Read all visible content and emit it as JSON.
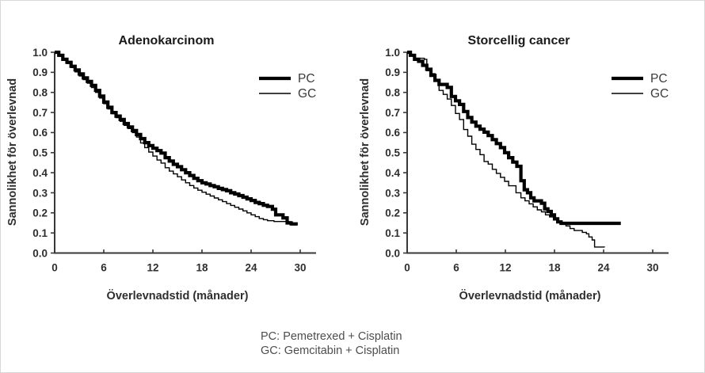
{
  "figure": {
    "footnote_lines": [
      "PC: Pemetrexed + Cisplatin",
      "GC: Gemcitabin + Cisplatin"
    ]
  },
  "chart_data": [
    {
      "type": "line",
      "subtype": "kaplan-meier-step",
      "title": "Adenokarcinom",
      "xlabel": "Överlevnadstid (månader)",
      "ylabel": "Sannolikhet för överlevnad",
      "xlim": [
        0,
        32
      ],
      "ylim": [
        0.0,
        1.0
      ],
      "xticks": [
        0,
        6,
        12,
        18,
        24,
        30
      ],
      "yticks": [
        "0.0",
        "0.1",
        "0.2",
        "0.3",
        "0.4",
        "0.5",
        "0.6",
        "0.7",
        "0.8",
        "0.9",
        "1.0"
      ],
      "grid": false,
      "legend_position": "upper-right",
      "series": [
        {
          "name": "PC",
          "style": "thick",
          "color": "#000000",
          "stroke_width": 4.2,
          "points": [
            [
              0,
              1.0
            ],
            [
              0.5,
              0.985
            ],
            [
              1,
              0.965
            ],
            [
              1.5,
              0.95
            ],
            [
              2,
              0.93
            ],
            [
              2.5,
              0.912
            ],
            [
              3,
              0.892
            ],
            [
              3.5,
              0.872
            ],
            [
              4,
              0.855
            ],
            [
              4.5,
              0.835
            ],
            [
              5,
              0.81
            ],
            [
              5.5,
              0.782
            ],
            [
              6,
              0.752
            ],
            [
              6.5,
              0.726
            ],
            [
              7,
              0.7
            ],
            [
              7.5,
              0.682
            ],
            [
              8,
              0.665
            ],
            [
              8.5,
              0.645
            ],
            [
              9,
              0.628
            ],
            [
              9.5,
              0.61
            ],
            [
              10,
              0.59
            ],
            [
              10.5,
              0.57
            ],
            [
              11,
              0.55
            ],
            [
              11.5,
              0.535
            ],
            [
              12,
              0.522
            ],
            [
              12.5,
              0.51
            ],
            [
              13,
              0.498
            ],
            [
              13.5,
              0.475
            ],
            [
              14,
              0.458
            ],
            [
              14.5,
              0.442
            ],
            [
              15,
              0.43
            ],
            [
              15.5,
              0.415
            ],
            [
              16,
              0.4
            ],
            [
              16.5,
              0.386
            ],
            [
              17,
              0.372
            ],
            [
              17.5,
              0.36
            ],
            [
              18,
              0.35
            ],
            [
              18.5,
              0.344
            ],
            [
              19,
              0.336
            ],
            [
              19.5,
              0.33
            ],
            [
              20,
              0.322
            ],
            [
              20.5,
              0.316
            ],
            [
              21,
              0.31
            ],
            [
              21.5,
              0.3
            ],
            [
              22,
              0.294
            ],
            [
              22.5,
              0.286
            ],
            [
              23,
              0.278
            ],
            [
              23.5,
              0.27
            ],
            [
              24,
              0.262
            ],
            [
              24.5,
              0.252
            ],
            [
              25,
              0.246
            ],
            [
              25.5,
              0.238
            ],
            [
              26,
              0.232
            ],
            [
              26.6,
              0.218
            ],
            [
              27,
              0.19
            ],
            [
              27.9,
              0.175
            ],
            [
              28.4,
              0.15
            ],
            [
              28.9,
              0.145
            ],
            [
              29.7,
              0.145
            ]
          ]
        },
        {
          "name": "GC",
          "style": "thin",
          "color": "#000000",
          "stroke_width": 1.4,
          "points": [
            [
              0,
              1.0
            ],
            [
              0.5,
              0.98
            ],
            [
              1,
              0.96
            ],
            [
              1.5,
              0.944
            ],
            [
              2,
              0.924
            ],
            [
              2.5,
              0.902
            ],
            [
              3,
              0.882
            ],
            [
              3.5,
              0.864
            ],
            [
              4,
              0.846
            ],
            [
              4.5,
              0.824
            ],
            [
              5,
              0.8
            ],
            [
              5.5,
              0.772
            ],
            [
              6,
              0.744
            ],
            [
              6.5,
              0.718
            ],
            [
              7,
              0.694
            ],
            [
              7.5,
              0.674
            ],
            [
              8,
              0.656
            ],
            [
              8.5,
              0.636
            ],
            [
              9,
              0.62
            ],
            [
              9.5,
              0.6
            ],
            [
              10,
              0.578
            ],
            [
              10.5,
              0.548
            ],
            [
              11,
              0.525
            ],
            [
              11.5,
              0.503
            ],
            [
              12,
              0.483
            ],
            [
              12.5,
              0.463
            ],
            [
              13,
              0.448
            ],
            [
              13.5,
              0.425
            ],
            [
              14,
              0.408
            ],
            [
              14.5,
              0.394
            ],
            [
              15,
              0.38
            ],
            [
              15.5,
              0.364
            ],
            [
              16,
              0.35
            ],
            [
              16.5,
              0.336
            ],
            [
              17,
              0.324
            ],
            [
              17.5,
              0.313
            ],
            [
              18,
              0.303
            ],
            [
              18.5,
              0.293
            ],
            [
              19,
              0.284
            ],
            [
              19.5,
              0.274
            ],
            [
              20,
              0.265
            ],
            [
              20.5,
              0.256
            ],
            [
              21,
              0.246
            ],
            [
              21.5,
              0.237
            ],
            [
              22,
              0.228
            ],
            [
              22.5,
              0.219
            ],
            [
              23,
              0.21
            ],
            [
              23.5,
              0.2
            ],
            [
              24,
              0.19
            ],
            [
              24.5,
              0.181
            ],
            [
              25,
              0.172
            ],
            [
              25.5,
              0.166
            ],
            [
              26,
              0.161
            ],
            [
              26.8,
              0.157
            ],
            [
              28.6,
              0.156
            ],
            [
              28.9,
              0.14
            ],
            [
              29.6,
              0.14
            ]
          ]
        }
      ]
    },
    {
      "type": "line",
      "subtype": "kaplan-meier-step",
      "title": "Storcellig cancer",
      "xlabel": "Överlevnadstid (månader)",
      "ylabel": "Sannolikhet för överlevnad",
      "xlim": [
        0,
        32
      ],
      "ylim": [
        0.0,
        1.0
      ],
      "xticks": [
        0,
        6,
        12,
        18,
        24,
        30
      ],
      "yticks": [
        "0.0",
        "0.1",
        "0.2",
        "0.3",
        "0.4",
        "0.5",
        "0.6",
        "0.7",
        "0.8",
        "0.9",
        "1.0"
      ],
      "grid": false,
      "legend_position": "upper-right",
      "series": [
        {
          "name": "PC",
          "style": "thick",
          "color": "#000000",
          "stroke_width": 4.2,
          "points": [
            [
              0,
              1.0
            ],
            [
              0.4,
              0.985
            ],
            [
              0.9,
              0.965
            ],
            [
              1.4,
              0.955
            ],
            [
              1.9,
              0.935
            ],
            [
              2.4,
              0.915
            ],
            [
              2.9,
              0.885
            ],
            [
              3.4,
              0.86
            ],
            [
              3.9,
              0.84
            ],
            [
              4.9,
              0.825
            ],
            [
              5.4,
              0.78
            ],
            [
              5.9,
              0.758
            ],
            [
              6.4,
              0.74
            ],
            [
              6.9,
              0.705
            ],
            [
              7.4,
              0.675
            ],
            [
              7.9,
              0.652
            ],
            [
              8.4,
              0.632
            ],
            [
              8.9,
              0.617
            ],
            [
              9.4,
              0.602
            ],
            [
              9.9,
              0.585
            ],
            [
              10.4,
              0.565
            ],
            [
              10.9,
              0.545
            ],
            [
              11.4,
              0.525
            ],
            [
              11.9,
              0.5
            ],
            [
              12.4,
              0.475
            ],
            [
              12.9,
              0.453
            ],
            [
              13.4,
              0.432
            ],
            [
              13.9,
              0.36
            ],
            [
              14.3,
              0.315
            ],
            [
              14.7,
              0.3
            ],
            [
              15.1,
              0.275
            ],
            [
              15.5,
              0.26
            ],
            [
              16.4,
              0.248
            ],
            [
              16.8,
              0.22
            ],
            [
              17.2,
              0.207
            ],
            [
              17.6,
              0.19
            ],
            [
              18.0,
              0.17
            ],
            [
              18.4,
              0.155
            ],
            [
              18.8,
              0.148
            ],
            [
              26.1,
              0.148
            ]
          ]
        },
        {
          "name": "GC",
          "style": "thin",
          "color": "#000000",
          "stroke_width": 1.4,
          "points": [
            [
              0,
              1.0
            ],
            [
              0.4,
              0.985
            ],
            [
              0.9,
              0.97
            ],
            [
              2.1,
              0.965
            ],
            [
              2.4,
              0.908
            ],
            [
              2.9,
              0.893
            ],
            [
              3.4,
              0.855
            ],
            [
              3.9,
              0.81
            ],
            [
              4.4,
              0.79
            ],
            [
              4.9,
              0.767
            ],
            [
              5.4,
              0.735
            ],
            [
              5.9,
              0.695
            ],
            [
              6.4,
              0.665
            ],
            [
              6.9,
              0.615
            ],
            [
              7.4,
              0.582
            ],
            [
              7.9,
              0.542
            ],
            [
              8.4,
              0.516
            ],
            [
              8.9,
              0.49
            ],
            [
              9.4,
              0.456
            ],
            [
              9.9,
              0.443
            ],
            [
              10.4,
              0.417
            ],
            [
              10.9,
              0.397
            ],
            [
              11.4,
              0.377
            ],
            [
              11.9,
              0.357
            ],
            [
              12.4,
              0.335
            ],
            [
              13.3,
              0.3
            ],
            [
              13.9,
              0.275
            ],
            [
              14.4,
              0.26
            ],
            [
              14.9,
              0.245
            ],
            [
              15.4,
              0.23
            ],
            [
              15.9,
              0.215
            ],
            [
              16.4,
              0.205
            ],
            [
              16.9,
              0.19
            ],
            [
              17.4,
              0.18
            ],
            [
              17.9,
              0.168
            ],
            [
              18.4,
              0.158
            ],
            [
              18.9,
              0.148
            ],
            [
              19.4,
              0.135
            ],
            [
              19.9,
              0.122
            ],
            [
              20.4,
              0.112
            ],
            [
              21.4,
              0.103
            ],
            [
              21.9,
              0.096
            ],
            [
              22.2,
              0.08
            ],
            [
              22.6,
              0.065
            ],
            [
              22.9,
              0.03
            ],
            [
              24.1,
              0.028
            ]
          ]
        }
      ]
    }
  ]
}
